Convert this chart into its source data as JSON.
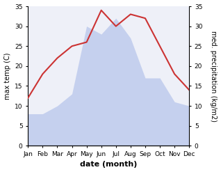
{
  "months": [
    "Jan",
    "Feb",
    "Mar",
    "Apr",
    "May",
    "Jun",
    "Jul",
    "Aug",
    "Sep",
    "Oct",
    "Nov",
    "Dec"
  ],
  "temperature": [
    12,
    18,
    22,
    25,
    26,
    34,
    30,
    33,
    32,
    25,
    18,
    14
  ],
  "precipitation": [
    8,
    8,
    10,
    13,
    30,
    28,
    32,
    27,
    17,
    17,
    11,
    10
  ],
  "temp_color": "#cc3333",
  "precip_fill_color": "#c5d0ee",
  "ylim": [
    0,
    35
  ],
  "xlabel": "date (month)",
  "ylabel_left": "max temp (C)",
  "ylabel_right": "med. precipitation (kg/m2)",
  "yticks": [
    0,
    5,
    10,
    15,
    20,
    25,
    30,
    35
  ],
  "plot_bg_color": "#eef0f8",
  "fig_bg_color": "#ffffff",
  "temp_linewidth": 1.5,
  "xlabel_fontsize": 8,
  "ylabel_fontsize": 7,
  "tick_fontsize": 6.5
}
